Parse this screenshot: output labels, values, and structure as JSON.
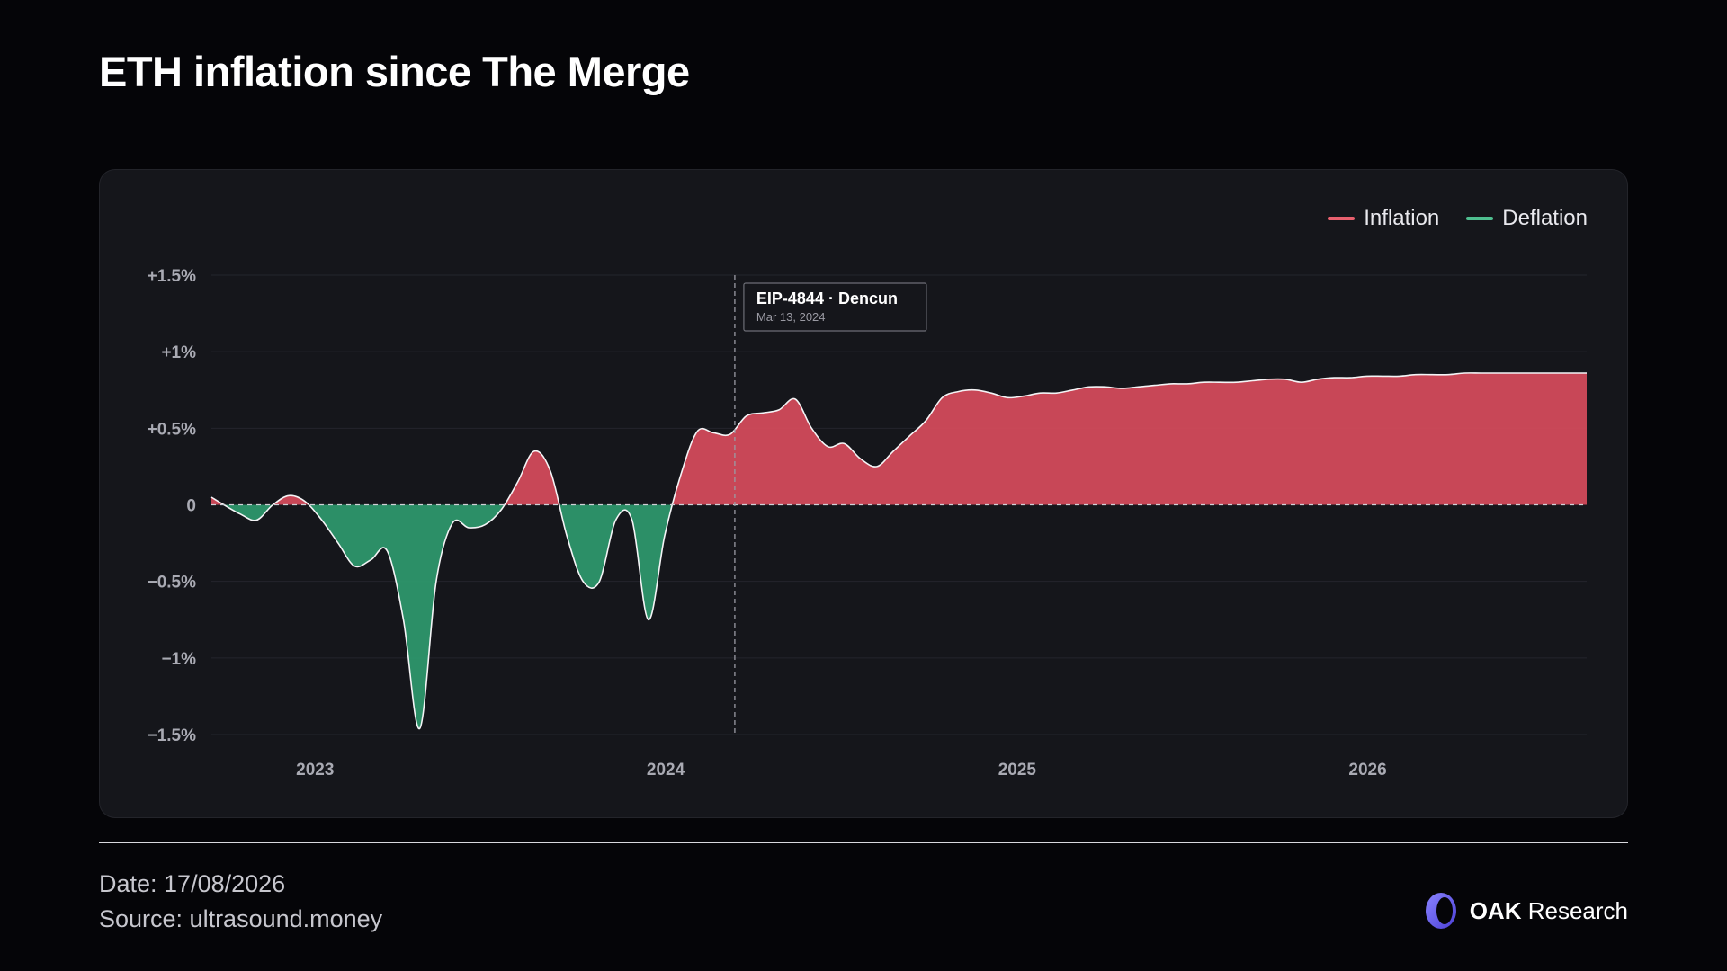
{
  "header": {
    "title": "ETH inflation since The Merge"
  },
  "footer": {
    "date": "Date: 17/08/2026",
    "source": "Source: ultrasound.money",
    "brand_bold": "OAK",
    "brand_rest": "Research"
  },
  "colors": {
    "inflation": "#d84c5c",
    "deflation": "#2f9a6e",
    "legend_inflation": "#e8606e",
    "legend_deflation": "#4fbf90"
  },
  "chart_data": {
    "type": "area",
    "legend": [
      "Inflation",
      "Deflation"
    ],
    "legend_position": "top-right",
    "y_ticks": [
      {
        "value": 1.5,
        "label": "+1.5%"
      },
      {
        "value": 1.0,
        "label": "+1%"
      },
      {
        "value": 0.5,
        "label": "+0.5%"
      },
      {
        "value": 0.0,
        "label": "0"
      },
      {
        "value": -0.5,
        "label": "−0.5%"
      },
      {
        "value": -1.0,
        "label": "−1%"
      },
      {
        "value": -1.5,
        "label": "−1.5%"
      }
    ],
    "ylim": [
      -1.5,
      1.5
    ],
    "x_ticks": [
      {
        "value": "2023-01-01",
        "label": "2023"
      },
      {
        "value": "2024-01-01",
        "label": "2024"
      },
      {
        "value": "2025-01-01",
        "label": "2025"
      },
      {
        "value": "2026-01-01",
        "label": "2026"
      }
    ],
    "xlim": [
      "2022-09-15",
      "2026-08-17"
    ],
    "grid": true,
    "annotation": {
      "date": "2024-03-13",
      "label": "EIP-4844 · Dencun",
      "sublabel": "Mar 13, 2024"
    },
    "series": [
      {
        "x": [
          "2022-09-15",
          "2022-09-28",
          "2022-10-15",
          "2022-11-01",
          "2022-11-18",
          "2022-12-05",
          "2022-12-22",
          "2023-01-08",
          "2023-01-25",
          "2023-02-11",
          "2023-02-28",
          "2023-03-17",
          "2023-04-03",
          "2023-04-20",
          "2023-05-07",
          "2023-05-24",
          "2023-06-10",
          "2023-06-27",
          "2023-07-14",
          "2023-07-31",
          "2023-08-17",
          "2023-09-03",
          "2023-09-20",
          "2023-10-07",
          "2023-10-24",
          "2023-11-10",
          "2023-11-27",
          "2023-12-14",
          "2023-12-31",
          "2024-01-17",
          "2024-02-03",
          "2024-02-20",
          "2024-03-08",
          "2024-03-25",
          "2024-04-11",
          "2024-04-28",
          "2024-05-15",
          "2024-06-01",
          "2024-06-18",
          "2024-07-05",
          "2024-07-22",
          "2024-08-08",
          "2024-08-25",
          "2024-09-11",
          "2024-09-28",
          "2024-10-15",
          "2024-11-01",
          "2024-11-18",
          "2024-12-05",
          "2024-12-22",
          "2025-01-08",
          "2025-01-25",
          "2025-02-11",
          "2025-02-28",
          "2025-03-17",
          "2025-04-03",
          "2025-04-20",
          "2025-05-07",
          "2025-05-24",
          "2025-06-10",
          "2025-06-27",
          "2025-07-14",
          "2025-07-31",
          "2025-08-17",
          "2025-09-03",
          "2025-09-20",
          "2025-10-07",
          "2025-10-24",
          "2025-11-10",
          "2025-11-27",
          "2025-12-14",
          "2025-12-31",
          "2026-01-17",
          "2026-02-03",
          "2026-02-20",
          "2026-03-09",
          "2026-03-26",
          "2026-04-12",
          "2026-04-29",
          "2026-05-16",
          "2026-06-02",
          "2026-06-19",
          "2026-07-06",
          "2026-07-23",
          "2026-08-09",
          "2026-08-17"
        ],
        "y": [
          0.05,
          0.0,
          -0.06,
          -0.1,
          0.0,
          0.06,
          0.02,
          -0.1,
          -0.25,
          -0.4,
          -0.36,
          -0.3,
          -0.75,
          -1.46,
          -0.5,
          -0.12,
          -0.15,
          -0.13,
          -0.03,
          0.15,
          0.35,
          0.22,
          -0.2,
          -0.5,
          -0.5,
          -0.1,
          -0.1,
          -0.75,
          -0.2,
          0.2,
          0.48,
          0.47,
          0.46,
          0.58,
          0.6,
          0.62,
          0.69,
          0.5,
          0.38,
          0.4,
          0.3,
          0.25,
          0.35,
          0.45,
          0.55,
          0.7,
          0.74,
          0.75,
          0.73,
          0.7,
          0.71,
          0.73,
          0.73,
          0.75,
          0.77,
          0.77,
          0.76,
          0.77,
          0.78,
          0.79,
          0.79,
          0.8,
          0.8,
          0.8,
          0.81,
          0.82,
          0.82,
          0.8,
          0.82,
          0.83,
          0.83,
          0.84,
          0.84,
          0.84,
          0.85,
          0.85,
          0.85,
          0.86,
          0.86,
          0.86,
          0.86,
          0.86,
          0.86,
          0.86,
          0.86,
          0.86
        ]
      }
    ]
  }
}
